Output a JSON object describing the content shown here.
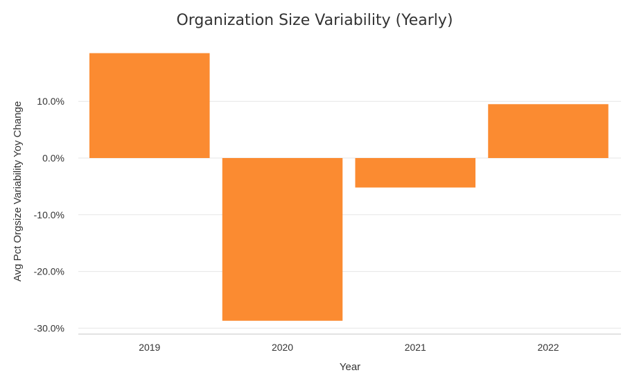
{
  "chart_data": {
    "type": "bar",
    "title": "Organization Size Variability (Yearly)",
    "xlabel": "Year",
    "ylabel": "Avg Pct Orgsize Variability Yoy Change",
    "categories": [
      "2019",
      "2020",
      "2021",
      "2022"
    ],
    "values": [
      18.5,
      -28.7,
      -5.2,
      9.5
    ],
    "unit": "%",
    "ylim": [
      -30.0,
      20.0
    ],
    "yticks": [
      -30.0,
      -20.0,
      -10.0,
      0.0,
      10.0
    ],
    "ytick_labels": [
      "-30.0%",
      "-20.0%",
      "-10.0%",
      "0.0%",
      "10.0%"
    ],
    "grid": true,
    "legend": "none",
    "bar_color": "#FB8B31"
  }
}
